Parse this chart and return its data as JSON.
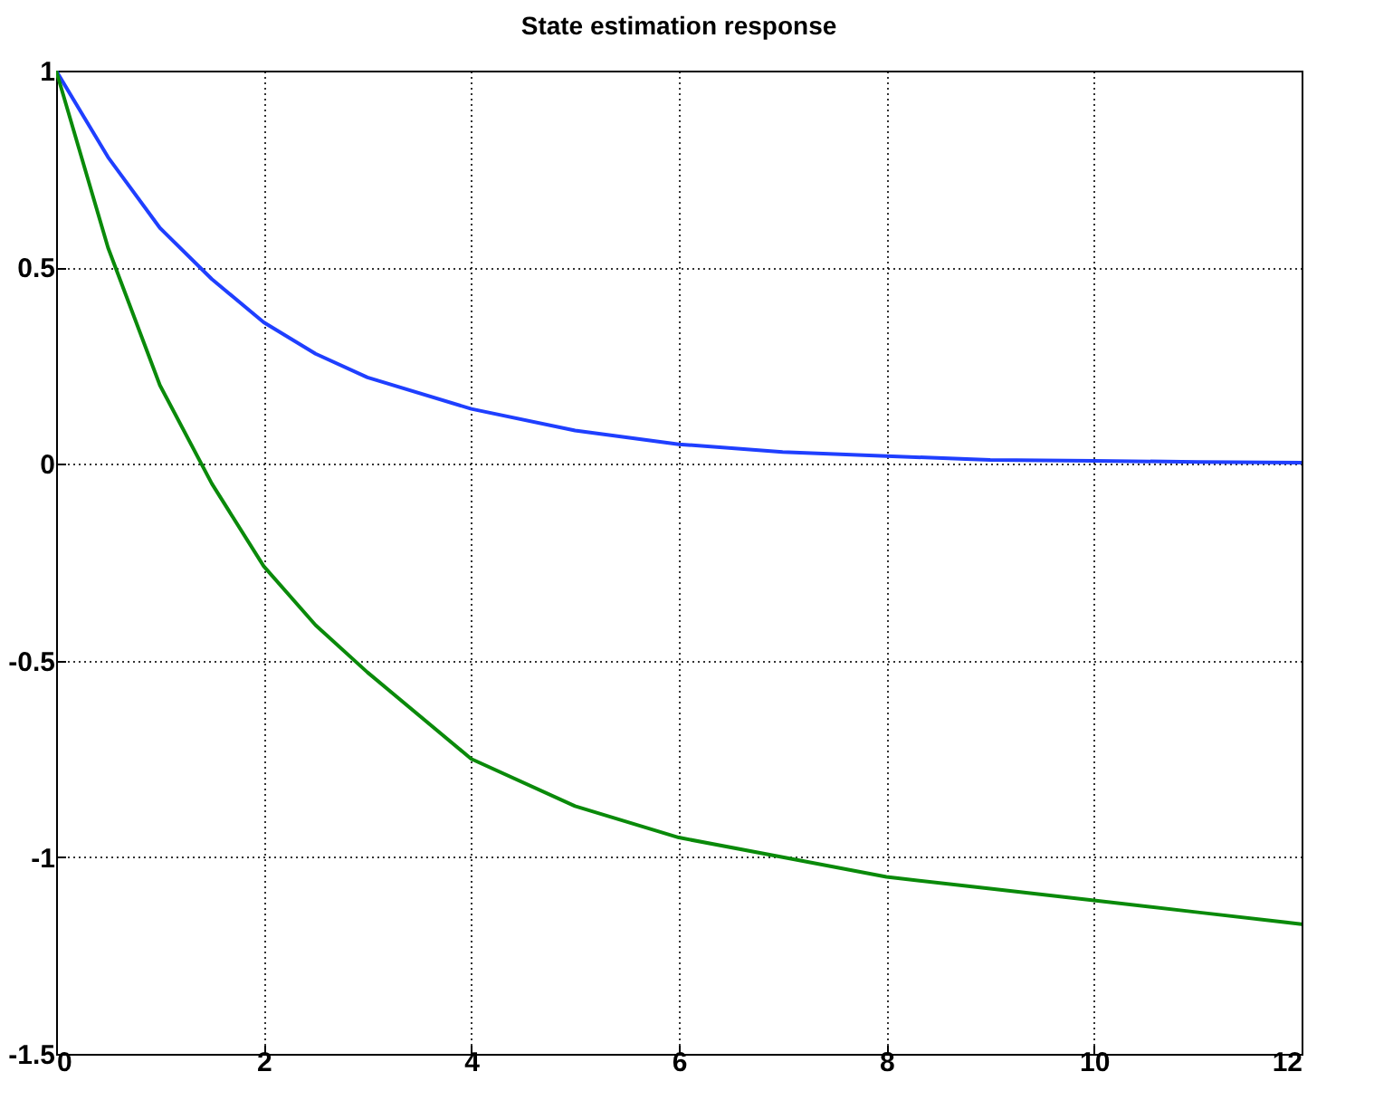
{
  "chart_data": {
    "type": "line",
    "title": "State estimation response",
    "x": [
      0,
      0.5,
      1,
      1.5,
      2,
      2.5,
      3,
      4,
      5,
      6,
      7,
      8,
      9,
      10,
      11,
      12
    ],
    "series": [
      {
        "color": "#1f3fff",
        "values": [
          1,
          0.78,
          0.6,
          0.47,
          0.36,
          0.28,
          0.22,
          0.14,
          0.085,
          0.05,
          0.03,
          0.02,
          0.01,
          0.008,
          0.005,
          0.003
        ]
      },
      {
        "color": "#0a8a0a",
        "values": [
          1,
          0.55,
          0.2,
          -0.05,
          -0.26,
          -0.41,
          -0.53,
          -0.75,
          -0.87,
          -0.95,
          -1.0,
          -1.05,
          -1.08,
          -1.11,
          -1.14,
          -1.17
        ]
      }
    ],
    "xlim": [
      0,
      12
    ],
    "xticks": [
      0,
      2,
      4,
      6,
      8,
      10,
      12
    ],
    "ylim": [
      -1.5,
      1
    ],
    "yticks": [
      -1.5,
      -1,
      -0.5,
      0,
      0.5,
      1
    ],
    "grid": true,
    "line_style": "solid",
    "legend": false
  }
}
